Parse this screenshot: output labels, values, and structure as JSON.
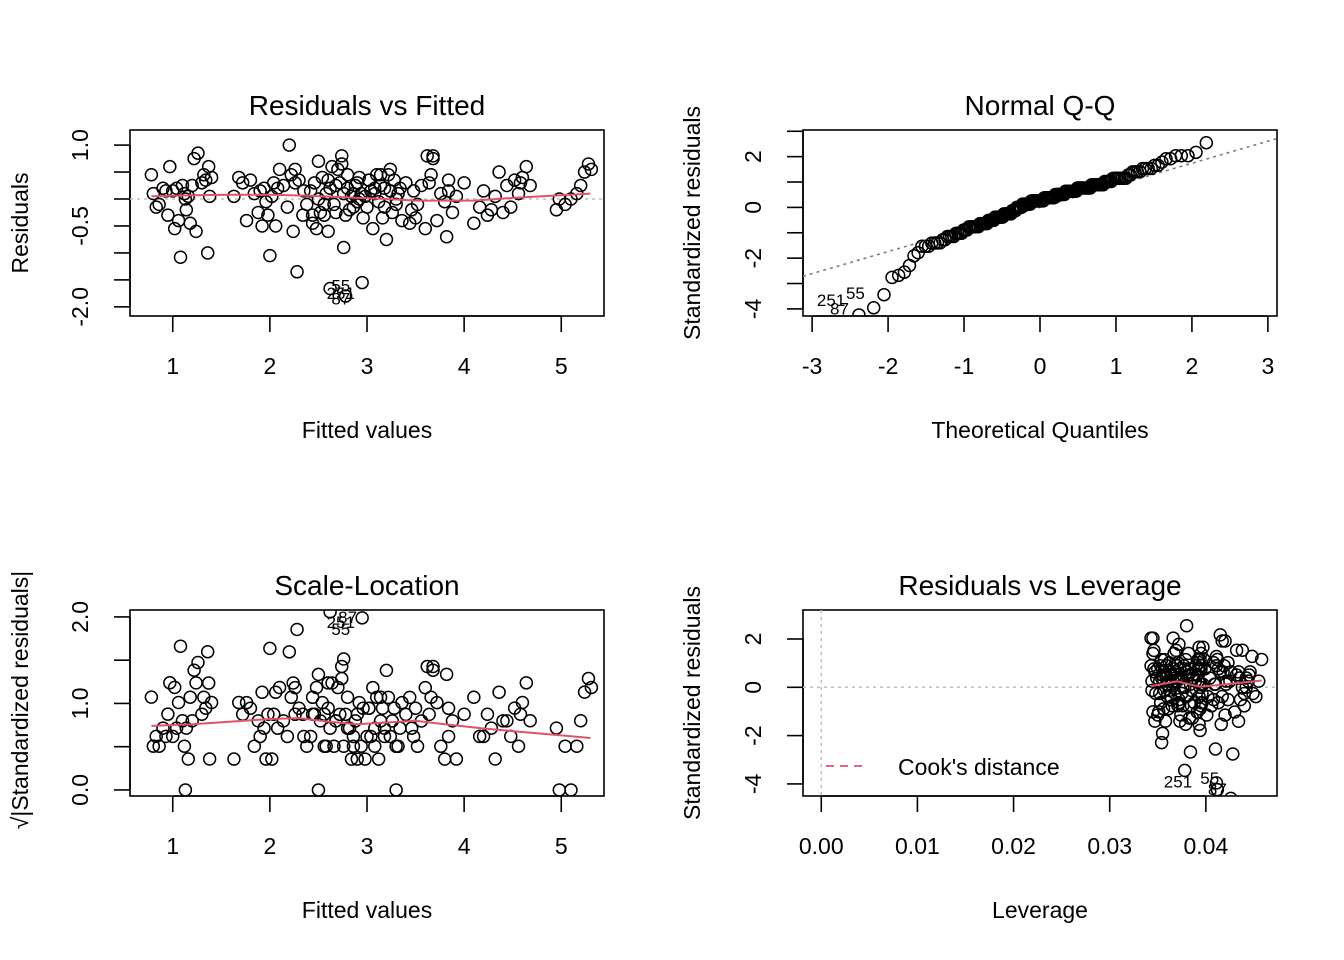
{
  "chart_data": [
    {
      "type": "scatter",
      "id": "resid_fitted",
      "title": "Residuals vs Fitted",
      "xlabel": "Fitted values",
      "ylabel": "Residuals",
      "xlim": [
        0.56,
        5.44
      ],
      "ylim": [
        -2.17,
        1.28
      ],
      "xticks": [
        1,
        2,
        3,
        4,
        5
      ],
      "xtick_labels": [
        "1",
        "2",
        "3",
        "4",
        "5"
      ],
      "yticks": [
        1.0,
        0.5,
        0.0,
        -0.5,
        -1.0,
        -1.5,
        -2.0
      ],
      "ytick_labels": [
        "1.0",
        "",
        "",
        "-0.5",
        "",
        "",
        "-2.0"
      ],
      "reference_line": {
        "y": 0,
        "style": "dotted",
        "color": "#bebebe"
      },
      "smoother": {
        "color": "#df536b",
        "x": [
          0.78,
          1.2,
          1.6,
          2.0,
          2.4,
          2.8,
          3.2,
          3.5,
          3.8,
          4.1,
          4.5,
          4.9,
          5.3
        ],
        "y": [
          0.05,
          0.07,
          0.08,
          0.08,
          0.06,
          0.03,
          0.0,
          -0.03,
          -0.03,
          -0.03,
          0.02,
          0.06,
          0.1
        ]
      },
      "outlier_labels": [
        {
          "label": "55",
          "x": 2.73,
          "y": -1.6
        },
        {
          "label": "251",
          "x": 2.73,
          "y": -1.74
        },
        {
          "label": "87",
          "x": 2.73,
          "y": -1.85
        }
      ]
    },
    {
      "type": "scatter",
      "id": "normal_qq",
      "title": "Normal Q-Q",
      "xlabel": "Theoretical Quantiles",
      "ylabel": "Standardized residuals",
      "xlim": [
        -3.12,
        3.12
      ],
      "ylim": [
        -4.28,
        3.05
      ],
      "xticks": [
        -3,
        -2,
        -1,
        0,
        1,
        2,
        3
      ],
      "xtick_labels": [
        "-3",
        "-2",
        "-1",
        "0",
        "1",
        "2",
        "3"
      ],
      "yticks": [
        3,
        2,
        1,
        0,
        -1,
        -2,
        -3,
        -4
      ],
      "ytick_labels": [
        "",
        "2",
        "",
        "0",
        "",
        "-2",
        "",
        "-4"
      ],
      "reference_line": {
        "intercept": 0.0,
        "slope": 0.87,
        "style": "dotted",
        "color": "#7f7f7f"
      },
      "outlier_labels": [
        {
          "label": "251",
          "x": -2.75,
          "y": -3.65
        },
        {
          "label": "55",
          "x": -2.43,
          "y": -3.38
        },
        {
          "label": "87",
          "x": -2.64,
          "y": -3.98
        }
      ]
    },
    {
      "type": "scatter",
      "id": "scale_location",
      "title": "Scale-Location",
      "xlabel": "Fitted values",
      "ylabel": "√|Standardized residuals|",
      "xlim": [
        0.56,
        5.44
      ],
      "ylim": [
        -0.07,
        2.08
      ],
      "xticks": [
        1,
        2,
        3,
        4,
        5
      ],
      "xtick_labels": [
        "1",
        "2",
        "3",
        "4",
        "5"
      ],
      "yticks": [
        0.0,
        0.5,
        1.0,
        1.5,
        2.0
      ],
      "ytick_labels": [
        "0.0",
        "",
        "1.0",
        "",
        "2.0"
      ],
      "smoother": {
        "color": "#df536b",
        "x": [
          0.78,
          1.2,
          1.6,
          2.0,
          2.3,
          2.6,
          2.9,
          3.2,
          3.5,
          3.8,
          4.2,
          4.6,
          5.0,
          5.3
        ],
        "y": [
          0.74,
          0.76,
          0.79,
          0.82,
          0.83,
          0.79,
          0.76,
          0.78,
          0.8,
          0.76,
          0.71,
          0.67,
          0.63,
          0.6
        ]
      },
      "outlier_labels": [
        {
          "label": "87",
          "x": 2.8,
          "y": 2.0
        },
        {
          "label": "251",
          "x": 2.73,
          "y": 1.94
        },
        {
          "label": "55",
          "x": 2.73,
          "y": 1.86
        }
      ]
    },
    {
      "type": "scatter",
      "id": "resid_leverage",
      "title": "Residuals vs Leverage",
      "xlabel": "Leverage",
      "ylabel": "Standardized residuals",
      "xlim": [
        -0.0019,
        0.0474
      ],
      "ylim": [
        -4.5,
        3.2
      ],
      "xticks": [
        0.0,
        0.01,
        0.02,
        0.03,
        0.04
      ],
      "xtick_labels": [
        "0.00",
        "0.01",
        "0.02",
        "0.03",
        "0.04"
      ],
      "yticks": [
        2,
        0,
        -2,
        -4
      ],
      "ytick_labels": [
        "2",
        "0",
        "-2",
        "-4"
      ],
      "reference_lines": [
        {
          "y": 0,
          "style": "dotted",
          "color": "#bebebe"
        },
        {
          "x": 0,
          "style": "dotted",
          "color": "#bebebe"
        }
      ],
      "smoother": {
        "color": "#df536b",
        "x": [
          0.0343,
          0.037,
          0.0394,
          0.042,
          0.0458
        ],
        "y": [
          0.05,
          0.25,
          0.02,
          0.12,
          0.28
        ]
      },
      "legend": {
        "label": "Cook's distance",
        "color": "#df536b",
        "style": "dashed",
        "position": "bottom-left"
      },
      "outlier_labels": [
        {
          "label": "251",
          "x": 0.0371,
          "y": -3.9
        },
        {
          "label": "55",
          "x": 0.0404,
          "y": -3.75
        },
        {
          "label": "87",
          "x": 0.0412,
          "y": -4.2
        }
      ]
    }
  ],
  "points": {
    "description": "fitted value and raw residual for each observation; leverage for each observation",
    "fitted": [
      0.78,
      0.8,
      0.83,
      0.86,
      0.9,
      0.93,
      0.95,
      0.97,
      1.0,
      1.02,
      1.04,
      1.06,
      1.08,
      1.1,
      1.12,
      1.14,
      1.16,
      1.18,
      1.2,
      1.22,
      1.24,
      1.26,
      1.3,
      1.32,
      1.34,
      1.36,
      1.38,
      1.4,
      1.63,
      1.68,
      1.72,
      1.76,
      1.8,
      1.84,
      1.88,
      1.9,
      1.92,
      1.94,
      1.96,
      1.98,
      2.0,
      2.02,
      2.04,
      2.06,
      2.08,
      2.1,
      2.14,
      2.18,
      2.2,
      2.22,
      2.24,
      2.26,
      2.28,
      2.3,
      2.34,
      2.38,
      2.42,
      2.44,
      2.46,
      2.48,
      2.5,
      2.52,
      2.54,
      2.56,
      2.58,
      2.6,
      2.62,
      2.64,
      2.66,
      2.68,
      2.7,
      2.72,
      2.74,
      2.76,
      2.78,
      2.8,
      2.82,
      2.84,
      2.86,
      2.88,
      2.9,
      2.92,
      2.94,
      2.96,
      2.98,
      3.0,
      3.02,
      3.04,
      3.06,
      3.08,
      3.1,
      3.12,
      3.14,
      3.16,
      3.18,
      3.2,
      3.22,
      3.24,
      3.26,
      3.28,
      3.3,
      3.32,
      3.36,
      3.4,
      3.44,
      3.48,
      3.52,
      3.56,
      3.6,
      3.64,
      3.68,
      3.72,
      3.76,
      3.8,
      3.84,
      3.88,
      3.92,
      4.0,
      4.1,
      4.16,
      4.2,
      4.24,
      4.28,
      4.32,
      4.36,
      4.4,
      4.44,
      4.48,
      4.52,
      4.56,
      4.6,
      4.64,
      4.68,
      4.95,
      4.98,
      5.04,
      5.1,
      5.16,
      5.2,
      5.24,
      5.28,
      5.31,
      2.62,
      2.78,
      2.95,
      1.13,
      1.37,
      2.26,
      3.62,
      3.68,
      3.84,
      4.58,
      2.56,
      2.8,
      2.74,
      2.9,
      3.08,
      3.14,
      3.3,
      3.46,
      2.35,
      2.5,
      2.68,
      2.86,
      3.02,
      3.18,
      3.34,
      3.5,
      3.66,
      3.82,
      2.44,
      2.6,
      2.76,
      2.92,
      3.24
    ],
    "residual": [
      0.45,
      0.1,
      -0.15,
      -0.1,
      0.2,
      0.15,
      -0.3,
      0.6,
      0.15,
      -0.55,
      0.2,
      -0.4,
      -1.08,
      0.25,
      0.1,
      -0.2,
      0.05,
      -0.45,
      0.25,
      0.75,
      -0.6,
      0.85,
      0.3,
      0.45,
      0.35,
      -1.0,
      0.05,
      0.4,
      0.05,
      0.4,
      0.3,
      -0.4,
      0.35,
      0.1,
      -0.25,
      0.15,
      -0.5,
      0.2,
      -0.05,
      -0.3,
      -1.05,
      0.05,
      0.3,
      -0.5,
      0.2,
      0.55,
      0.25,
      -0.15,
      1.0,
      0.45,
      -0.6,
      0.3,
      -1.35,
      0.35,
      -0.3,
      -0.1,
      0.15,
      -0.45,
      0.3,
      -0.55,
      0.7,
      -0.25,
      0.4,
      -0.3,
      0.1,
      0.35,
      0.2,
      0.6,
      -0.1,
      0.25,
      0.55,
      0.3,
      0.8,
      0.1,
      -0.3,
      0.2,
      -0.2,
      0.05,
      -0.15,
      0.25,
      -0.05,
      0.4,
      0.1,
      -0.35,
      0.05,
      -0.15,
      0.35,
      0.15,
      -0.55,
      0.2,
      0.45,
      -0.05,
      0.25,
      -0.35,
      0.2,
      -0.75,
      0.45,
      0.15,
      -0.25,
      0.35,
      -0.1,
      0.1,
      -0.4,
      0.3,
      -0.45,
      0.15,
      -0.1,
      0.25,
      -0.55,
      0.3,
      0.8,
      -0.4,
      0.1,
      -0.05,
      0.35,
      -0.25,
      0.05,
      0.3,
      -0.45,
      -0.15,
      0.15,
      -0.3,
      -0.2,
      0.05,
      0.5,
      -0.25,
      0.25,
      -0.15,
      0.35,
      0.1,
      0.4,
      0.6,
      0.25,
      -0.2,
      0.0,
      -0.1,
      0.0,
      0.1,
      0.25,
      0.5,
      0.65,
      0.55,
      -1.66,
      -1.8,
      -1.55,
      0.0,
      0.6,
      0.55,
      0.8,
      0.75,
      0.15,
      0.3,
      -0.1,
      0.45,
      0.65,
      0.3,
      0.1,
      0.45,
      0.0,
      -0.2,
      0.15,
      0.0,
      -0.25,
      0.1,
      0.35,
      -0.15,
      0.2,
      -0.35,
      0.45,
      -0.7,
      -0.3,
      -0.6,
      -0.9,
      0.0,
      0.55
    ],
    "leverage": [
      0.0458,
      0.0455,
      0.0452,
      0.0449,
      0.0445,
      0.0442,
      0.044,
      0.0438,
      0.0435,
      0.0434,
      0.0432,
      0.043,
      0.0428,
      0.0426,
      0.0425,
      0.0423,
      0.0421,
      0.042,
      0.0418,
      0.0417,
      0.0416,
      0.0415,
      0.0413,
      0.0412,
      0.0411,
      0.041,
      0.0409,
      0.0408,
      0.0395,
      0.0393,
      0.0392,
      0.0391,
      0.039,
      0.0389,
      0.0388,
      0.0387,
      0.0386,
      0.0386,
      0.0385,
      0.0385,
      0.0384,
      0.0384,
      0.0383,
      0.0383,
      0.0382,
      0.0382,
      0.0381,
      0.038,
      0.038,
      0.0379,
      0.0379,
      0.0378,
      0.0378,
      0.0377,
      0.0376,
      0.0375,
      0.0374,
      0.0374,
      0.0373,
      0.0373,
      0.0372,
      0.0372,
      0.0371,
      0.0371,
      0.037,
      0.037,
      0.0369,
      0.0369,
      0.0368,
      0.0368,
      0.0367,
      0.0367,
      0.0366,
      0.0366,
      0.0365,
      0.0365,
      0.0364,
      0.0364,
      0.0363,
      0.0363,
      0.0362,
      0.0362,
      0.0361,
      0.0361,
      0.036,
      0.036,
      0.0359,
      0.0359,
      0.0358,
      0.0358,
      0.0357,
      0.0357,
      0.0356,
      0.0356,
      0.0355,
      0.0355,
      0.0354,
      0.0354,
      0.0353,
      0.0353,
      0.0352,
      0.0352,
      0.0351,
      0.035,
      0.035,
      0.0349,
      0.0348,
      0.0347,
      0.0347,
      0.0346,
      0.0345,
      0.0345,
      0.0344,
      0.0344,
      0.0343,
      0.0395,
      0.0397,
      0.0399,
      0.0401,
      0.0402,
      0.0404,
      0.0406,
      0.0408,
      0.041,
      0.0411,
      0.0413,
      0.0415,
      0.0417,
      0.0419,
      0.0421,
      0.0423,
      0.0432,
      0.0434,
      0.0436,
      0.0438,
      0.044,
      0.0442,
      0.0444,
      0.0446,
      0.0448,
      0.0393,
      0.0395,
      0.0412,
      0.0426,
      0.0411,
      0.0378,
      0.0346,
      0.0345,
      0.0343,
      0.042,
      0.0372,
      0.0395,
      0.0396,
      0.0394,
      0.0397,
      0.0393,
      0.0392,
      0.0398,
      0.0376,
      0.0372,
      0.0368,
      0.0394,
      0.0396,
      0.0392,
      0.0395,
      0.0393,
      0.0391,
      0.0394,
      0.0392,
      0.0394,
      0.0395,
      0.0393,
      0.0354
    ]
  }
}
